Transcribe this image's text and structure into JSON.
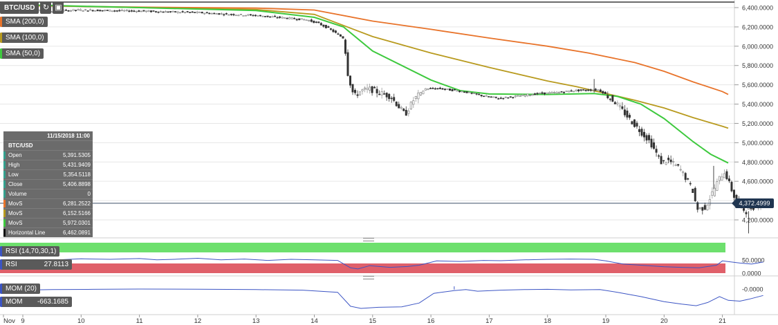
{
  "toolbar": {
    "symbol": "BTC/USD",
    "refresh_icon": "refresh-icon",
    "camera_icon": "camera-icon",
    "refresh_glyph": "↻",
    "camera_glyph": "▣"
  },
  "sma_labels": [
    {
      "label": "SMA (200,0)",
      "color": "#e8732a"
    },
    {
      "label": "SMA (100,0)",
      "color": "#b89a1e"
    },
    {
      "label": "SMA (50,0)",
      "color": "#3ec93e"
    }
  ],
  "info_panel": {
    "date": "11/15/2018 11:00",
    "symbol": "BTC/USD",
    "rows": [
      {
        "k": "Open",
        "v": "5,391.5305",
        "color": "#34a08e"
      },
      {
        "k": "High",
        "v": "5,431.9409",
        "color": "#34a08e"
      },
      {
        "k": "Low",
        "v": "5,354.5118",
        "color": "#34a08e"
      },
      {
        "k": "Close",
        "v": "5,406.8898",
        "color": "#34a08e"
      },
      {
        "k": "Volume",
        "v": "0",
        "color": "#34a08e"
      },
      {
        "k": "MovS",
        "v": "6,281.2522",
        "color": "#e8732a"
      },
      {
        "k": "MovS",
        "v": "6,152.5166",
        "color": "#b89a1e"
      },
      {
        "k": "MovS",
        "v": "5,972.0301",
        "color": "#3ec93e"
      },
      {
        "k": "Horizontal Line",
        "v": "6,462.0891",
        "color": "#111111"
      }
    ]
  },
  "price_axis": {
    "ticks": [
      "6,400.0000",
      "6,200.0000",
      "6,000.0000",
      "5,800.0000",
      "5,600.0000",
      "5,400.0000",
      "5,200.0000",
      "5,000.0000",
      "4,800.0000",
      "4,600.0000",
      "4,400.0000",
      "4,200.0000"
    ]
  },
  "current_price": "4,372.4999",
  "rsi": {
    "label": "RSI (14,70,30,1)",
    "value_label": "RSI",
    "value": "27.8113",
    "ticks": [
      "50.0000",
      "0.0000"
    ],
    "overbought_color": "#6de06d",
    "oversold_color": "#e0606a"
  },
  "mom": {
    "label": "MOM (20)",
    "value_label": "MOM",
    "value": "-663.1685",
    "ticks": [
      "-0.0000"
    ]
  },
  "x_axis": {
    "labels": [
      "Nov",
      "9",
      "10",
      "11",
      "12",
      "13",
      "14",
      "15",
      "16",
      "17",
      "18",
      "19",
      "20",
      "21"
    ]
  },
  "colors": {
    "sma200": "#e8732a",
    "sma100": "#b89a1e",
    "sma50": "#3ec93e",
    "indicator_line": "#3b54c4",
    "price_line": "#1f3550",
    "up": "#8a8a8a",
    "down": "#333333"
  },
  "chart_data": {
    "type": "candlestick",
    "ylim": [
      4050,
      6460
    ],
    "horizontal_line": 6462.0891,
    "current_price": 4372.4999,
    "price_path": [
      [
        8.95,
        6400
      ],
      [
        9.4,
        6360
      ],
      [
        10,
        6375
      ],
      [
        10.5,
        6370
      ],
      [
        11,
        6365
      ],
      [
        11.6,
        6355
      ],
      [
        12,
        6350
      ],
      [
        12.6,
        6330
      ],
      [
        13,
        6320
      ],
      [
        13.4,
        6300
      ],
      [
        13.9,
        6275
      ],
      [
        14.1,
        6240
      ],
      [
        14.3,
        6180
      ],
      [
        14.55,
        6080
      ],
      [
        14.62,
        5700
      ],
      [
        14.72,
        5480
      ],
      [
        14.85,
        5540
      ],
      [
        15.0,
        5555
      ],
      [
        15.15,
        5520
      ],
      [
        15.35,
        5480
      ],
      [
        15.6,
        5290
      ],
      [
        15.75,
        5450
      ],
      [
        15.95,
        5560
      ],
      [
        16.2,
        5560
      ],
      [
        16.6,
        5530
      ],
      [
        16.9,
        5490
      ],
      [
        17.2,
        5460
      ],
      [
        17.5,
        5480
      ],
      [
        17.9,
        5510
      ],
      [
        18.2,
        5520
      ],
      [
        18.5,
        5540
      ],
      [
        18.9,
        5550
      ],
      [
        19.0,
        5520
      ],
      [
        19.2,
        5420
      ],
      [
        19.5,
        5210
      ],
      [
        19.8,
        5010
      ],
      [
        20.0,
        4790
      ],
      [
        20.1,
        4820
      ],
      [
        20.3,
        4740
      ],
      [
        20.45,
        4600
      ],
      [
        20.55,
        4480
      ],
      [
        20.6,
        4310
      ],
      [
        20.75,
        4330
      ],
      [
        20.9,
        4520
      ],
      [
        21.0,
        4640
      ],
      [
        21.08,
        4700
      ],
      [
        21.12,
        4640
      ],
      [
        21.25,
        4430
      ],
      [
        21.35,
        4330
      ],
      [
        21.45,
        4290
      ],
      [
        21.55,
        4330
      ],
      [
        21.7,
        4372
      ]
    ],
    "sma200": [
      [
        8.95,
        6420
      ],
      [
        11,
        6405
      ],
      [
        13,
        6395
      ],
      [
        14,
        6375
      ],
      [
        15,
        6260
      ],
      [
        16,
        6175
      ],
      [
        17,
        6085
      ],
      [
        18,
        6000
      ],
      [
        18.7,
        5930
      ],
      [
        19.5,
        5830
      ],
      [
        20,
        5740
      ],
      [
        20.5,
        5630
      ],
      [
        21,
        5530
      ],
      [
        21.1,
        5500
      ]
    ],
    "sma100": [
      [
        8.95,
        6425
      ],
      [
        11,
        6400
      ],
      [
        13,
        6380
      ],
      [
        14,
        6330
      ],
      [
        15,
        6100
      ],
      [
        16,
        5930
      ],
      [
        17,
        5780
      ],
      [
        18,
        5640
      ],
      [
        18.5,
        5580
      ],
      [
        19,
        5510
      ],
      [
        19.5,
        5440
      ],
      [
        20,
        5360
      ],
      [
        20.5,
        5260
      ],
      [
        21,
        5170
      ],
      [
        21.1,
        5150
      ]
    ],
    "sma50": [
      [
        8.95,
        6430
      ],
      [
        11,
        6400
      ],
      [
        13,
        6370
      ],
      [
        14,
        6300
      ],
      [
        14.5,
        6200
      ],
      [
        15,
        5950
      ],
      [
        16,
        5650
      ],
      [
        16.5,
        5540
      ],
      [
        17,
        5505
      ],
      [
        18,
        5500
      ],
      [
        18.8,
        5510
      ],
      [
        19.2,
        5480
      ],
      [
        19.6,
        5400
      ],
      [
        20,
        5250
      ],
      [
        20.5,
        5010
      ],
      [
        20.8,
        4880
      ],
      [
        21.1,
        4790
      ]
    ],
    "rsi_path": [
      [
        8.95,
        38
      ],
      [
        9.3,
        46
      ],
      [
        9.6,
        50
      ],
      [
        10,
        54
      ],
      [
        10.5,
        52
      ],
      [
        11,
        55
      ],
      [
        11.3,
        50
      ],
      [
        11.6,
        52
      ],
      [
        12,
        56
      ],
      [
        12.4,
        50
      ],
      [
        12.8,
        53
      ],
      [
        13.2,
        48
      ],
      [
        13.6,
        52
      ],
      [
        14,
        50
      ],
      [
        14.4,
        48
      ],
      [
        14.62,
        20
      ],
      [
        14.75,
        16
      ],
      [
        14.95,
        28
      ],
      [
        15.3,
        22
      ],
      [
        15.6,
        25
      ],
      [
        15.8,
        30
      ],
      [
        16.1,
        46
      ],
      [
        16.5,
        44
      ],
      [
        16.9,
        48
      ],
      [
        17.2,
        47
      ],
      [
        17.6,
        50
      ],
      [
        18.0,
        52
      ],
      [
        18.4,
        53
      ],
      [
        18.8,
        52
      ],
      [
        19.0,
        46
      ],
      [
        19.3,
        34
      ],
      [
        19.6,
        30
      ],
      [
        20.0,
        24
      ],
      [
        20.3,
        22
      ],
      [
        20.6,
        20
      ],
      [
        20.9,
        30
      ],
      [
        21.0,
        46
      ],
      [
        21.3,
        38
      ],
      [
        21.5,
        34
      ],
      [
        21.7,
        42
      ]
    ],
    "mom_path": [
      [
        8.95,
        -40
      ],
      [
        9.5,
        -20
      ],
      [
        10.2,
        -10
      ],
      [
        11,
        0
      ],
      [
        12,
        -5
      ],
      [
        13,
        -20
      ],
      [
        13.8,
        -40
      ],
      [
        14.4,
        -120
      ],
      [
        14.62,
        -640
      ],
      [
        14.8,
        -720
      ],
      [
        15.1,
        -680
      ],
      [
        15.5,
        -660
      ],
      [
        15.8,
        -520
      ],
      [
        16.05,
        -160
      ],
      [
        16.4,
        -60
      ],
      [
        16.6,
        -20
      ],
      [
        16.8,
        -80
      ],
      [
        17.2,
        -40
      ],
      [
        17.6,
        -20
      ],
      [
        18.0,
        -10
      ],
      [
        18.4,
        -30
      ],
      [
        18.9,
        -20
      ],
      [
        19.2,
        -120
      ],
      [
        19.6,
        -280
      ],
      [
        20.0,
        -470
      ],
      [
        20.3,
        -560
      ],
      [
        20.55,
        -620
      ],
      [
        20.75,
        -500
      ],
      [
        20.95,
        -280
      ],
      [
        21.1,
        -420
      ],
      [
        21.3,
        -450
      ],
      [
        21.45,
        -380
      ],
      [
        21.7,
        -240
      ]
    ],
    "x_ticks": [
      "Nov",
      "9",
      "10",
      "11",
      "12",
      "13",
      "14",
      "15",
      "16",
      "17",
      "18",
      "19",
      "20",
      "21"
    ]
  }
}
